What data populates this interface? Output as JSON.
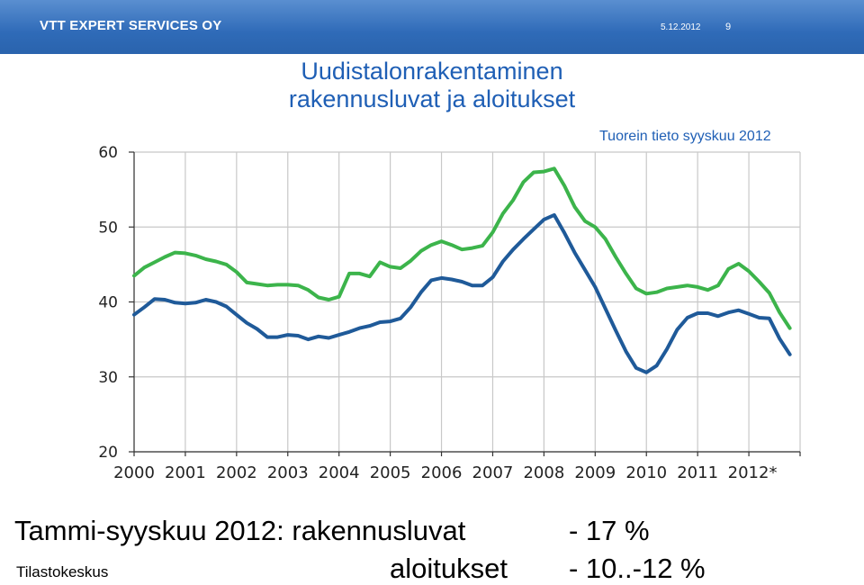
{
  "header": {
    "brand": "VTT EXPERT SERVICES OY",
    "date": "5.12.2012",
    "page_number": "9"
  },
  "slide": {
    "title_line1": "Uudistalonrakentaminen",
    "title_line2": "rakennusluvat ja aloitukset",
    "note": "Tuorein tieto syyskuu 2012",
    "summary_label": "Tammi-syyskuu 2012: rakennusluvat",
    "summary_permits_change": "- 17 %",
    "starts_label": "aloitukset",
    "summary_starts_change": "- 10..-12 %",
    "source": "Tilastokeskus"
  },
  "chart_data": {
    "type": "line",
    "title": "",
    "xlabel": "",
    "ylabel": "",
    "x_tick_labels": [
      "2000",
      "2001",
      "2002",
      "2003",
      "2004",
      "2005",
      "2006",
      "2007",
      "2008",
      "2009",
      "2010",
      "2011",
      "2012*"
    ],
    "y_ticks": [
      "20",
      "30",
      "40",
      "50",
      "60"
    ],
    "xlim": [
      2000,
      2013
    ],
    "ylim": [
      20,
      60
    ],
    "grid": true,
    "legend": "none",
    "series": [
      {
        "color": "#3cb44b",
        "points": [
          [
            2000.0,
            43.5
          ],
          [
            2000.2,
            44.6
          ],
          [
            2000.4,
            45.3
          ],
          [
            2000.6,
            46.0
          ],
          [
            2000.8,
            46.6
          ],
          [
            2001.0,
            46.5
          ],
          [
            2001.2,
            46.2
          ],
          [
            2001.4,
            45.7
          ],
          [
            2001.6,
            45.4
          ],
          [
            2001.8,
            45.0
          ],
          [
            2002.0,
            44.0
          ],
          [
            2002.2,
            42.6
          ],
          [
            2002.4,
            42.4
          ],
          [
            2002.6,
            42.2
          ],
          [
            2002.8,
            42.3
          ],
          [
            2003.0,
            42.3
          ],
          [
            2003.2,
            42.2
          ],
          [
            2003.4,
            41.6
          ],
          [
            2003.6,
            40.6
          ],
          [
            2003.8,
            40.3
          ],
          [
            2004.0,
            40.7
          ],
          [
            2004.2,
            43.8
          ],
          [
            2004.4,
            43.8
          ],
          [
            2004.6,
            43.4
          ],
          [
            2004.8,
            45.3
          ],
          [
            2005.0,
            44.7
          ],
          [
            2005.2,
            44.5
          ],
          [
            2005.4,
            45.5
          ],
          [
            2005.6,
            46.8
          ],
          [
            2005.8,
            47.6
          ],
          [
            2006.0,
            48.1
          ],
          [
            2006.2,
            47.6
          ],
          [
            2006.4,
            47.0
          ],
          [
            2006.6,
            47.2
          ],
          [
            2006.8,
            47.5
          ],
          [
            2007.0,
            49.3
          ],
          [
            2007.2,
            51.8
          ],
          [
            2007.4,
            53.6
          ],
          [
            2007.6,
            56.0
          ],
          [
            2007.8,
            57.3
          ],
          [
            2008.0,
            57.4
          ],
          [
            2008.2,
            57.8
          ],
          [
            2008.4,
            55.5
          ],
          [
            2008.6,
            52.7
          ],
          [
            2008.8,
            50.8
          ],
          [
            2009.0,
            50.0
          ],
          [
            2009.2,
            48.4
          ],
          [
            2009.4,
            46.0
          ],
          [
            2009.6,
            43.8
          ],
          [
            2009.8,
            41.8
          ],
          [
            2010.0,
            41.1
          ],
          [
            2010.2,
            41.3
          ],
          [
            2010.4,
            41.8
          ],
          [
            2010.6,
            42.0
          ],
          [
            2010.8,
            42.2
          ],
          [
            2011.0,
            42.0
          ],
          [
            2011.2,
            41.6
          ],
          [
            2011.4,
            42.2
          ],
          [
            2011.6,
            44.4
          ],
          [
            2011.8,
            45.1
          ],
          [
            2012.0,
            44.1
          ],
          [
            2012.2,
            42.7
          ],
          [
            2012.4,
            41.2
          ],
          [
            2012.6,
            38.6
          ],
          [
            2012.8,
            36.5
          ]
        ]
      },
      {
        "color": "#1f5a99",
        "points": [
          [
            2000.0,
            38.3
          ],
          [
            2000.2,
            39.3
          ],
          [
            2000.4,
            40.4
          ],
          [
            2000.6,
            40.3
          ],
          [
            2000.8,
            39.9
          ],
          [
            2001.0,
            39.8
          ],
          [
            2001.2,
            39.9
          ],
          [
            2001.4,
            40.3
          ],
          [
            2001.6,
            40.0
          ],
          [
            2001.8,
            39.4
          ],
          [
            2002.0,
            38.3
          ],
          [
            2002.2,
            37.2
          ],
          [
            2002.4,
            36.4
          ],
          [
            2002.6,
            35.3
          ],
          [
            2002.8,
            35.3
          ],
          [
            2003.0,
            35.6
          ],
          [
            2003.2,
            35.5
          ],
          [
            2003.4,
            35.0
          ],
          [
            2003.6,
            35.4
          ],
          [
            2003.8,
            35.2
          ],
          [
            2004.0,
            35.6
          ],
          [
            2004.2,
            36.0
          ],
          [
            2004.4,
            36.5
          ],
          [
            2004.6,
            36.8
          ],
          [
            2004.8,
            37.3
          ],
          [
            2005.0,
            37.4
          ],
          [
            2005.2,
            37.8
          ],
          [
            2005.4,
            39.3
          ],
          [
            2005.6,
            41.3
          ],
          [
            2005.8,
            42.9
          ],
          [
            2006.0,
            43.2
          ],
          [
            2006.2,
            43.0
          ],
          [
            2006.4,
            42.7
          ],
          [
            2006.6,
            42.2
          ],
          [
            2006.8,
            42.2
          ],
          [
            2007.0,
            43.3
          ],
          [
            2007.2,
            45.4
          ],
          [
            2007.4,
            47.0
          ],
          [
            2007.6,
            48.4
          ],
          [
            2007.8,
            49.7
          ],
          [
            2008.0,
            51.0
          ],
          [
            2008.2,
            51.6
          ],
          [
            2008.4,
            49.2
          ],
          [
            2008.6,
            46.6
          ],
          [
            2008.8,
            44.3
          ],
          [
            2009.0,
            42.0
          ],
          [
            2009.2,
            39.1
          ],
          [
            2009.4,
            36.2
          ],
          [
            2009.6,
            33.4
          ],
          [
            2009.8,
            31.2
          ],
          [
            2010.0,
            30.6
          ],
          [
            2010.2,
            31.5
          ],
          [
            2010.4,
            33.7
          ],
          [
            2010.6,
            36.3
          ],
          [
            2010.8,
            37.9
          ],
          [
            2011.0,
            38.5
          ],
          [
            2011.2,
            38.5
          ],
          [
            2011.4,
            38.1
          ],
          [
            2011.6,
            38.6
          ],
          [
            2011.8,
            38.9
          ],
          [
            2012.0,
            38.4
          ],
          [
            2012.2,
            37.9
          ],
          [
            2012.4,
            37.8
          ],
          [
            2012.6,
            35.1
          ],
          [
            2012.8,
            33.0
          ]
        ]
      }
    ]
  }
}
